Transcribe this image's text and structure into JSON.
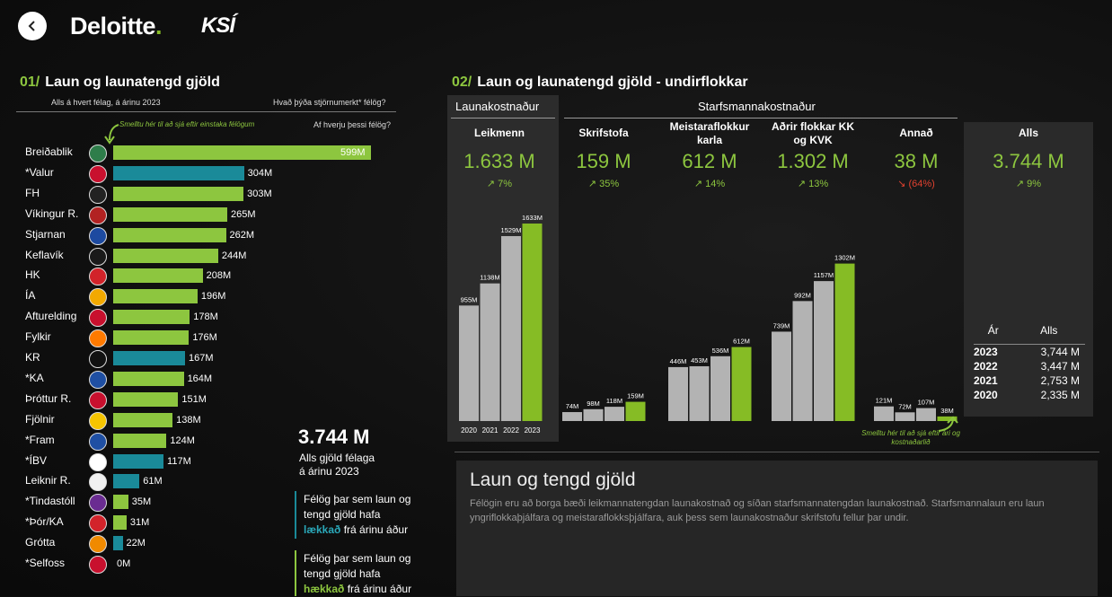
{
  "header": {
    "brand_main": "Deloitte",
    "brand_dot": ".",
    "brand_second": "KSÍ"
  },
  "left": {
    "num": "01/",
    "title": "Laun og launatengd gjöld",
    "subtitle": "Alls á hvert félag, á árinu 2023",
    "question1": "Hvað þýða stjörnumerkt* félög?",
    "question2": "Af hverju þessi félög?",
    "hint": "Smelltu hér til að sjá eftir einstaka félögum",
    "colors": {
      "increase": "#8dc63f",
      "decrease": "#1a8a99"
    },
    "clubs": [
      {
        "name": "Breiðablik",
        "value": 599,
        "label": "599M",
        "trend": "up",
        "crest": "#2e7d4a"
      },
      {
        "name": "*Valur",
        "value": 304,
        "label": "304M",
        "trend": "down",
        "crest": "#c8102e"
      },
      {
        "name": "FH",
        "value": 303,
        "label": "303M",
        "trend": "up",
        "crest": "#222222"
      },
      {
        "name": "Víkingur R.",
        "value": 265,
        "label": "265M",
        "trend": "up",
        "crest": "#b22222"
      },
      {
        "name": "Stjarnan",
        "value": 262,
        "label": "262M",
        "trend": "up",
        "crest": "#1d4aa0"
      },
      {
        "name": "Keflavík",
        "value": 244,
        "label": "244M",
        "trend": "up",
        "crest": "#1a1a1a"
      },
      {
        "name": "HK",
        "value": 208,
        "label": "208M",
        "trend": "up",
        "crest": "#d2232a"
      },
      {
        "name": "ÍA",
        "value": 196,
        "label": "196M",
        "trend": "up",
        "crest": "#f2a900"
      },
      {
        "name": "Afturelding",
        "value": 178,
        "label": "178M",
        "trend": "up",
        "crest": "#c8102e"
      },
      {
        "name": "Fylkir",
        "value": 176,
        "label": "176M",
        "trend": "up",
        "crest": "#ff7a00"
      },
      {
        "name": "KR",
        "value": 167,
        "label": "167M",
        "trend": "down",
        "crest": "#111111"
      },
      {
        "name": "*KA",
        "value": 164,
        "label": "164M",
        "trend": "up",
        "crest": "#1f4fa3"
      },
      {
        "name": "Þróttur R.",
        "value": 151,
        "label": "151M",
        "trend": "up",
        "crest": "#c8102e"
      },
      {
        "name": "Fjölnir",
        "value": 138,
        "label": "138M",
        "trend": "up",
        "crest": "#f5c400"
      },
      {
        "name": "*Fram",
        "value": 124,
        "label": "124M",
        "trend": "up",
        "crest": "#1f4fa3"
      },
      {
        "name": "*ÍBV",
        "value": 117,
        "label": "117M",
        "trend": "down",
        "crest": "#ffffff"
      },
      {
        "name": "Leiknir R.",
        "value": 61,
        "label": "61M",
        "trend": "down",
        "crest": "#f0f0f0"
      },
      {
        "name": "*Tindastóll",
        "value": 35,
        "label": "35M",
        "trend": "up",
        "crest": "#6a2c91"
      },
      {
        "name": "*Þór/KA",
        "value": 31,
        "label": "31M",
        "trend": "up",
        "crest": "#d2232a"
      },
      {
        "name": "Grótta",
        "value": 22,
        "label": "22M",
        "trend": "down",
        "crest": "#f08a00"
      },
      {
        "name": "*Selfoss",
        "value": 0,
        "label": "0M",
        "trend": "down",
        "crest": "#c8102e"
      }
    ],
    "total_value": "3.744 M",
    "total_caption1": "Alls gjöld félaga",
    "total_caption2": "á árinu 2023",
    "legend_down_1": "Félög þar sem laun og",
    "legend_down_2": "tengd gjöld hafa",
    "legend_down_word": "lækkað",
    "legend_down_3": " frá árinu áður",
    "legend_up_1": "Félög þar sem laun og",
    "legend_up_2": "tengd gjöld hafa",
    "legend_up_word": "hækkað",
    "legend_up_3": " frá árinu áður"
  },
  "right": {
    "num": "02/",
    "title": "Laun og launatengd gjöld - undirflokkar",
    "group1": "Launakostnaður",
    "group2": "Starfsmannakostnaður",
    "hint": "Smelltu hér til að sjá eftir ári og kostnaðarlið",
    "cards": [
      {
        "label": "Leikmenn",
        "value": "1.633 M",
        "change": "↗ 7%",
        "dir": "up"
      },
      {
        "label": "Skrifstofa",
        "value": "159 M",
        "change": "↗ 35%",
        "dir": "up"
      },
      {
        "label": "Meistaraflokkur karla",
        "value": "612 M",
        "change": "↗ 14%",
        "dir": "up"
      },
      {
        "label": "Aðrir flokkar KK og KVK",
        "value": "1.302 M",
        "change": "↗ 13%",
        "dir": "up"
      },
      {
        "label": "Annað",
        "value": "38 M",
        "change": "↘ (64%)",
        "dir": "down"
      },
      {
        "label": "Alls",
        "value": "3.744 M",
        "change": "↗ 9%",
        "dir": "up"
      }
    ],
    "years": [
      "2020",
      "2021",
      "2022",
      "2023"
    ],
    "chart_data": [
      {
        "type": "bar",
        "title": "Leikmenn",
        "categories": [
          "2020",
          "2021",
          "2022",
          "2023"
        ],
        "values": [
          955,
          1138,
          1529,
          1633
        ],
        "labels": [
          "955M",
          "1138M",
          "1529M",
          "1633M"
        ]
      },
      {
        "type": "bar",
        "title": "Skrifstofa",
        "categories": [
          "2020",
          "2021",
          "2022",
          "2023"
        ],
        "values": [
          74,
          98,
          118,
          159
        ],
        "labels": [
          "74M",
          "98M",
          "118M",
          "159M"
        ]
      },
      {
        "type": "bar",
        "title": "Meistaraflokkur karla",
        "categories": [
          "2020",
          "2021",
          "2022",
          "2023"
        ],
        "values": [
          446,
          453,
          536,
          612
        ],
        "labels": [
          "446M",
          "453M",
          "536M",
          "612M"
        ]
      },
      {
        "type": "bar",
        "title": "Aðrir flokkar KK og KVK",
        "categories": [
          "2020",
          "2021",
          "2022",
          "2023"
        ],
        "values": [
          739,
          992,
          1157,
          1302
        ],
        "labels": [
          "739M",
          "992M",
          "1157M",
          "1302M"
        ]
      },
      {
        "type": "bar",
        "title": "Annað",
        "categories": [
          "2020",
          "2021",
          "2022",
          "2023"
        ],
        "values": [
          121,
          72,
          107,
          38
        ],
        "labels": [
          "121M",
          "72M",
          "107M",
          "38M"
        ]
      }
    ],
    "table": {
      "headers": [
        "Ár",
        "Alls"
      ],
      "rows": [
        [
          "2023",
          "3,744 M"
        ],
        [
          "2022",
          "3,447 M"
        ],
        [
          "2021",
          "2,753 M"
        ],
        [
          "2020",
          "2,335 M"
        ]
      ]
    },
    "info_title": "Laun og tengd gjöld",
    "info_text": "Félögin eru að borga bæði leikmannatengdan launakostnað og síðan starfsmannatengdan launakostnað. Starfsmannalaun eru laun yngriflokkaþjálfara og meistaraflokksþjálfara, auk þess sem launakostnaður skrifstofu fellur þar undir."
  },
  "chart_colors": {
    "bar_old": "#b3b3b3",
    "bar_current": "#86bc25"
  }
}
